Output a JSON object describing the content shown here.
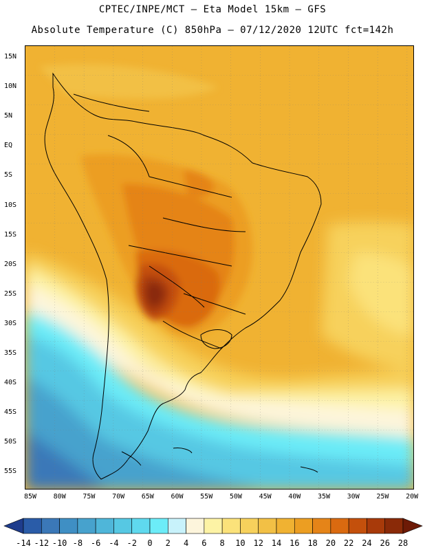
{
  "header": {
    "line1": "CPTEC/INPE/MCT —  Eta Model 15km — GFS",
    "line2": "Absolute Temperature (C) 850hPa — 07/12/2020 12UTC fct=142h"
  },
  "axes": {
    "lat_labels": [
      "15N",
      "10N",
      "5N",
      "EQ",
      "5S",
      "10S",
      "15S",
      "20S",
      "25S",
      "30S",
      "35S",
      "40S",
      "45S",
      "50S",
      "55S"
    ],
    "lon_labels": [
      "85W",
      "80W",
      "75W",
      "70W",
      "65W",
      "60W",
      "55W",
      "50W",
      "45W",
      "40W",
      "35W",
      "30W",
      "25W",
      "20W"
    ]
  },
  "colorbar": {
    "values": [
      "-14",
      "-12",
      "-10",
      "-8",
      "-6",
      "-4",
      "-2",
      "0",
      "2",
      "4",
      "6",
      "8",
      "10",
      "12",
      "14",
      "16",
      "18",
      "20",
      "22",
      "24",
      "26",
      "28"
    ],
    "colors": [
      "#1e3c8c",
      "#2a5ca8",
      "#3b78b8",
      "#3f8fc4",
      "#47a2cd",
      "#4fb6d9",
      "#56c8e3",
      "#5fd9ee",
      "#6cecf8",
      "#c8f2fb",
      "#fdf5dc",
      "#fdf3a5",
      "#fbe27a",
      "#f7d15c",
      "#f2c045",
      "#f0b232",
      "#ec9e22",
      "#e58418",
      "#da6a10",
      "#c4500c",
      "#a83a0a",
      "#8a2a08",
      "#6d1a06"
    ],
    "unit": "C"
  }
}
